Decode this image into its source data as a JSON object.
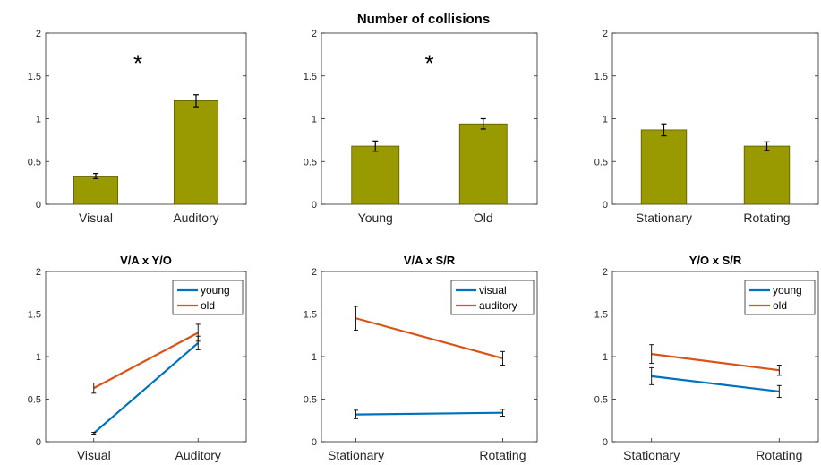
{
  "figure_title": "Number of collisions",
  "colors": {
    "bar": "#999900",
    "bar_edge": "#5a5a00",
    "young": "#0072BD",
    "old": "#D95319",
    "axis": "#262626",
    "err": "#000000"
  },
  "chart_data": [
    {
      "type": "bar",
      "title": "",
      "categories": [
        "Visual",
        "Auditory"
      ],
      "values": [
        0.33,
        1.21
      ],
      "errors": [
        0.03,
        0.07
      ],
      "ylim": [
        0,
        2
      ],
      "yticks": [
        "0",
        "0.5",
        "1",
        "1.5",
        "2"
      ],
      "annotation": "*"
    },
    {
      "type": "bar",
      "title": "",
      "categories": [
        "Young",
        "Old"
      ],
      "values": [
        0.68,
        0.94
      ],
      "errors": [
        0.06,
        0.06
      ],
      "ylim": [
        0,
        2
      ],
      "yticks": [
        "0",
        "0.5",
        "1",
        "1.5",
        "2"
      ],
      "annotation": "*"
    },
    {
      "type": "bar",
      "title": "",
      "categories": [
        "Stationary",
        "Rotating"
      ],
      "values": [
        0.87,
        0.68
      ],
      "errors": [
        0.07,
        0.05
      ],
      "ylim": [
        0,
        2
      ],
      "yticks": [
        "0",
        "0.5",
        "1",
        "1.5",
        "2"
      ],
      "annotation": ""
    },
    {
      "type": "line",
      "title": "V/A x Y/O",
      "categories": [
        "Visual",
        "Auditory"
      ],
      "ylim": [
        0,
        2
      ],
      "yticks": [
        "0",
        "0.5",
        "1",
        "1.5",
        "2"
      ],
      "legend_position": "top-right",
      "series": [
        {
          "name": "young",
          "values": [
            0.1,
            1.16
          ],
          "errors": [
            0.01,
            0.08
          ]
        },
        {
          "name": "old",
          "values": [
            0.63,
            1.28
          ],
          "errors": [
            0.06,
            0.1
          ]
        }
      ]
    },
    {
      "type": "line",
      "title": "V/A x S/R",
      "categories": [
        "Stationary",
        "Rotating"
      ],
      "ylim": [
        0,
        2
      ],
      "yticks": [
        "0",
        "0.5",
        "1",
        "1.5",
        "2"
      ],
      "legend_position": "top-right",
      "series": [
        {
          "name": "visual",
          "values": [
            0.32,
            0.34
          ],
          "errors": [
            0.05,
            0.04
          ]
        },
        {
          "name": "auditory",
          "values": [
            1.45,
            0.98
          ],
          "errors": [
            0.14,
            0.08
          ]
        }
      ]
    },
    {
      "type": "line",
      "title": "Y/O x S/R",
      "categories": [
        "Stationary",
        "Rotating"
      ],
      "ylim": [
        0,
        2
      ],
      "yticks": [
        "0",
        "0.5",
        "1",
        "1.5",
        "2"
      ],
      "legend_position": "top-right",
      "series": [
        {
          "name": "young",
          "values": [
            0.77,
            0.59
          ],
          "errors": [
            0.1,
            0.07
          ]
        },
        {
          "name": "old",
          "values": [
            1.03,
            0.84
          ],
          "errors": [
            0.11,
            0.06
          ]
        }
      ]
    }
  ]
}
